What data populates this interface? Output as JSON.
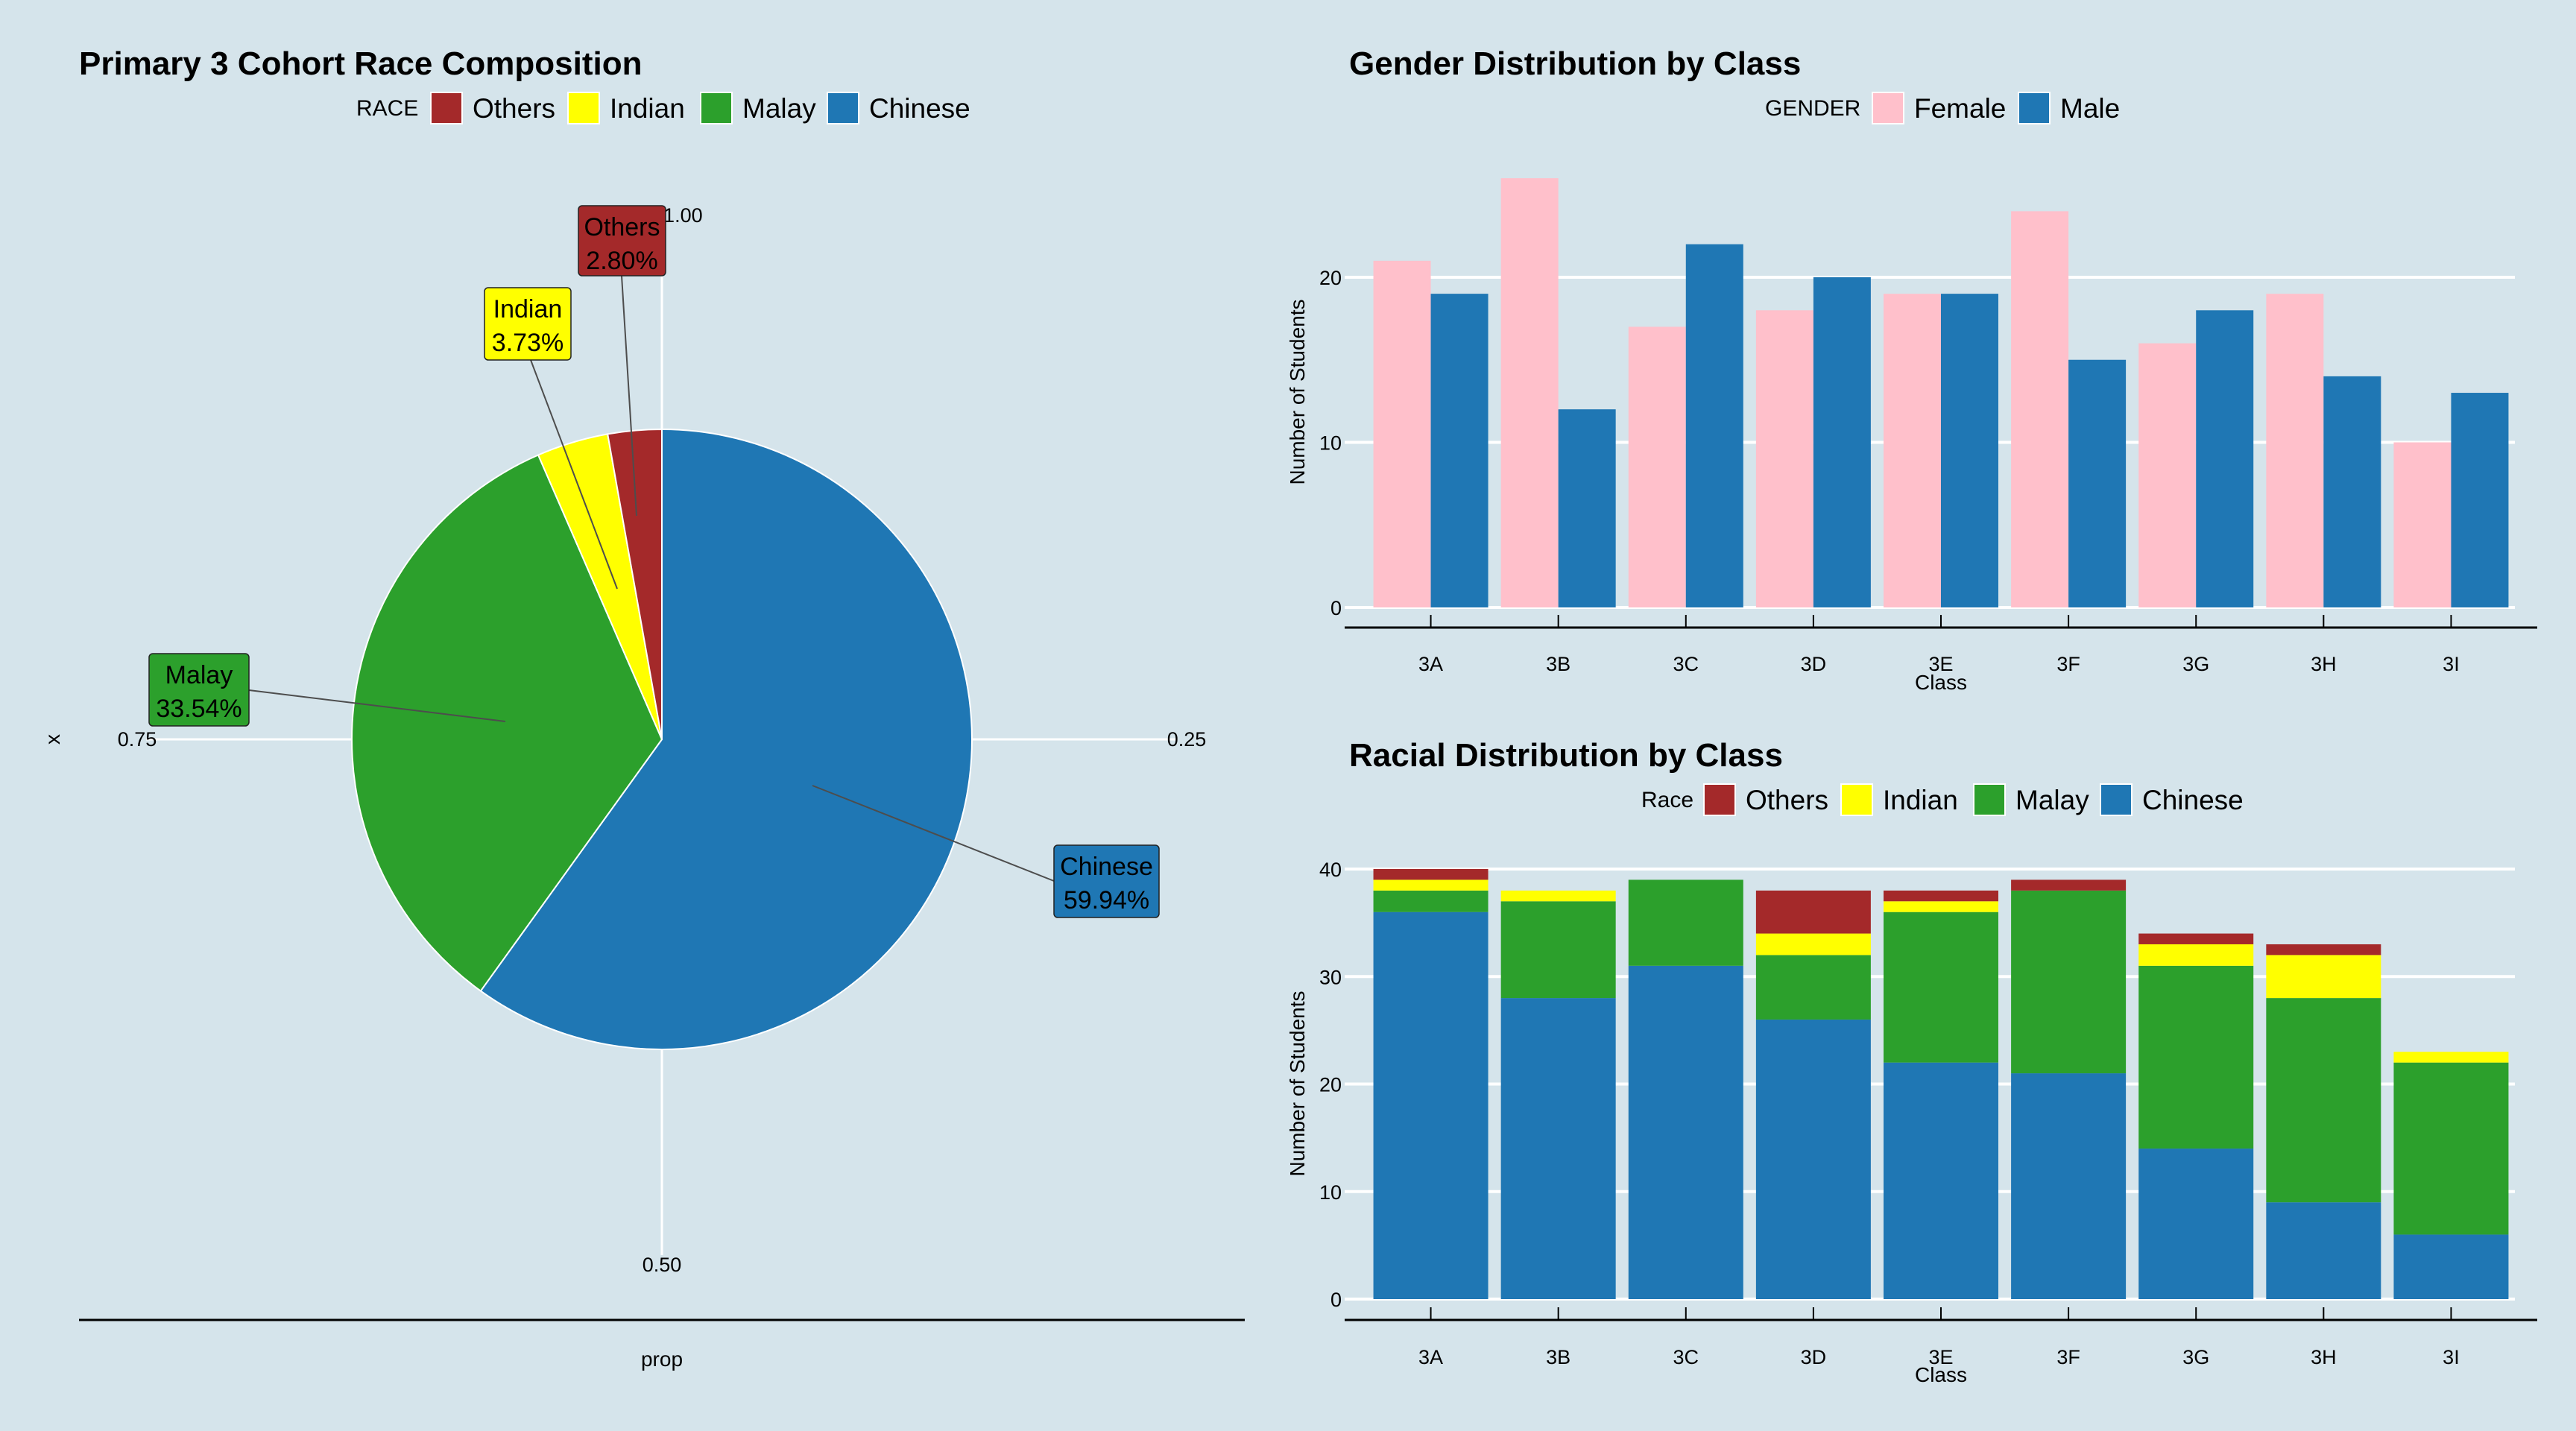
{
  "colors": {
    "background": "#d5e4eb",
    "Others": "#a4292a",
    "Indian": "#ffff00",
    "Malay": "#2ca02c",
    "Chinese": "#1f77b4",
    "Female": "#ffc0cb",
    "Male": "#1f77b4",
    "gridline": "#ffffff",
    "leader": "#4d4d4d"
  },
  "chart_data": [
    {
      "type": "pie",
      "title": "Primary 3 Cohort Race Composition",
      "legend_title": "RACE",
      "legend_position": "top",
      "legend": [
        "Others",
        "Indian",
        "Malay",
        "Chinese"
      ],
      "slices": [
        {
          "label": "Chinese",
          "value": 59.94,
          "text": "59.94%"
        },
        {
          "label": "Malay",
          "value": 33.54,
          "text": "33.54%"
        },
        {
          "label": "Indian",
          "value": 3.73,
          "text": "3.73%"
        },
        {
          "label": "Others",
          "value": 2.8,
          "text": "2.80%"
        }
      ],
      "theta_ticks": [
        "0.00/1.00",
        "0.25",
        "0.50",
        "0.75"
      ],
      "xlabel": "prop",
      "ylabel": "x"
    },
    {
      "type": "bar",
      "title": "Gender Distribution by Class",
      "legend_title": "GENDER",
      "legend_position": "top",
      "categories": [
        "3A",
        "3B",
        "3C",
        "3D",
        "3E",
        "3F",
        "3G",
        "3H",
        "3I"
      ],
      "series": [
        {
          "name": "Female",
          "values": [
            21,
            26,
            17,
            18,
            19,
            24,
            16,
            19,
            10
          ]
        },
        {
          "name": "Male",
          "values": [
            19,
            12,
            22,
            20,
            19,
            15,
            18,
            14,
            13
          ]
        }
      ],
      "xlabel": "Class",
      "ylabel": "Number of Students",
      "ylim": [
        0,
        26
      ],
      "yticks": [
        0,
        10,
        20
      ],
      "grid": true
    },
    {
      "type": "bar",
      "stacked": true,
      "title": "Racial Distribution by Class",
      "legend_title": "Race",
      "legend_position": "top",
      "legend": [
        "Others",
        "Indian",
        "Malay",
        "Chinese"
      ],
      "categories": [
        "3A",
        "3B",
        "3C",
        "3D",
        "3E",
        "3F",
        "3G",
        "3H",
        "3I"
      ],
      "series": [
        {
          "name": "Chinese",
          "values": [
            36,
            28,
            31,
            26,
            22,
            21,
            14,
            9,
            6
          ]
        },
        {
          "name": "Malay",
          "values": [
            2,
            9,
            8,
            6,
            14,
            17,
            17,
            19,
            16
          ]
        },
        {
          "name": "Indian",
          "values": [
            1,
            1,
            0,
            2,
            1,
            0,
            2,
            4,
            1
          ]
        },
        {
          "name": "Others",
          "values": [
            1,
            0,
            0,
            4,
            1,
            1,
            1,
            1,
            0
          ]
        }
      ],
      "xlabel": "Class",
      "ylabel": "Number of Students",
      "ylim": [
        0,
        40
      ],
      "yticks": [
        0,
        10,
        20,
        30,
        40
      ],
      "grid": true
    }
  ]
}
